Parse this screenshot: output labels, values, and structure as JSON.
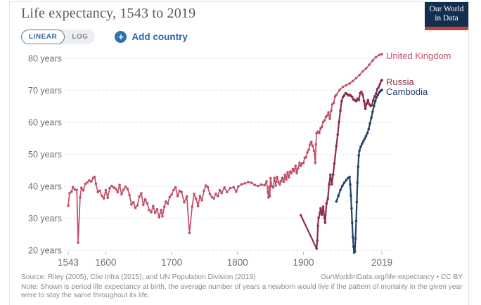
{
  "header": {
    "title": "Life expectancy, 1543 to 2019",
    "logo": {
      "line1": "Our World",
      "line2": "in Data"
    }
  },
  "controls": {
    "linear_label": "LINEAR",
    "log_label": "LOG",
    "add_icon": "+",
    "add_country_label": "Add country"
  },
  "chart_data": {
    "type": "line",
    "title": "Life expectancy, 1543 to 2019",
    "xlabel": "",
    "ylabel": "",
    "x_axis": {
      "range": [
        1543,
        2019
      ],
      "ticks": [
        1543,
        1600,
        1700,
        1800,
        1900,
        2019
      ]
    },
    "y_axis": {
      "range": [
        20,
        80
      ],
      "ticks": [
        20,
        30,
        40,
        50,
        60,
        70,
        80
      ],
      "tick_suffix": " years",
      "grid": true
    },
    "legend_position": "right-end-labels",
    "series": [
      {
        "name": "United Kingdom",
        "color": "#c0506a",
        "points": [
          [
            1543,
            33.9
          ],
          [
            1545,
            37.8
          ],
          [
            1548,
            38.3
          ],
          [
            1550,
            39.7
          ],
          [
            1553,
            39.0
          ],
          [
            1556,
            38.8
          ],
          [
            1558,
            22.4
          ],
          [
            1561,
            36.5
          ],
          [
            1563,
            39.5
          ],
          [
            1566,
            38.7
          ],
          [
            1569,
            40.8
          ],
          [
            1572,
            41.2
          ],
          [
            1575,
            41.8
          ],
          [
            1578,
            41.5
          ],
          [
            1581,
            42.6
          ],
          [
            1583,
            42.9
          ],
          [
            1585,
            40.8
          ],
          [
            1588,
            38.2
          ],
          [
            1591,
            38.6
          ],
          [
            1594,
            37.0
          ],
          [
            1597,
            36.2
          ],
          [
            1600,
            38.8
          ],
          [
            1603,
            36.4
          ],
          [
            1606,
            39.4
          ],
          [
            1609,
            40.1
          ],
          [
            1612,
            39.6
          ],
          [
            1615,
            39.2
          ],
          [
            1618,
            38.1
          ],
          [
            1621,
            40.4
          ],
          [
            1624,
            37.5
          ],
          [
            1627,
            38.9
          ],
          [
            1630,
            39.8
          ],
          [
            1633,
            39.2
          ],
          [
            1636,
            37.3
          ],
          [
            1639,
            34.3
          ],
          [
            1642,
            35.0
          ],
          [
            1645,
            33.2
          ],
          [
            1648,
            34.0
          ],
          [
            1651,
            36.8
          ],
          [
            1654,
            37.8
          ],
          [
            1657,
            34.2
          ],
          [
            1660,
            35.9
          ],
          [
            1663,
            34.6
          ],
          [
            1666,
            32.5
          ],
          [
            1669,
            31.9
          ],
          [
            1672,
            33.8
          ],
          [
            1675,
            31.7
          ],
          [
            1678,
            32.8
          ],
          [
            1681,
            30.3
          ],
          [
            1684,
            32.6
          ],
          [
            1686,
            30.6
          ],
          [
            1689,
            33.6
          ],
          [
            1691,
            35.2
          ],
          [
            1694,
            34.5
          ],
          [
            1697,
            36.6
          ],
          [
            1700,
            37.4
          ],
          [
            1703,
            38.8
          ],
          [
            1706,
            39.7
          ],
          [
            1709,
            36.9
          ],
          [
            1712,
            38.5
          ],
          [
            1715,
            38.2
          ],
          [
            1719,
            35.0
          ],
          [
            1723,
            36.8
          ],
          [
            1727,
            25.4
          ],
          [
            1731,
            33.6
          ],
          [
            1734,
            37.6
          ],
          [
            1737,
            36.1
          ],
          [
            1740,
            33.8
          ],
          [
            1743,
            36.9
          ],
          [
            1746,
            35.6
          ],
          [
            1749,
            38.6
          ],
          [
            1752,
            40.2
          ],
          [
            1755,
            39.7
          ],
          [
            1758,
            37.6
          ],
          [
            1761,
            36.6
          ],
          [
            1764,
            36.2
          ],
          [
            1767,
            37.6
          ],
          [
            1770,
            36.9
          ],
          [
            1773,
            38.8
          ],
          [
            1776,
            37.9
          ],
          [
            1780,
            39.6
          ],
          [
            1784,
            38.2
          ],
          [
            1789,
            39.4
          ],
          [
            1794,
            39.7
          ],
          [
            1798,
            38.3
          ],
          [
            1801,
            39.9
          ],
          [
            1806,
            40.6
          ],
          [
            1811,
            40.9
          ],
          [
            1816,
            41.3
          ],
          [
            1821,
            41.1
          ],
          [
            1826,
            40.4
          ],
          [
            1831,
            40.1
          ],
          [
            1836,
            40.5
          ],
          [
            1841,
            40.3
          ],
          [
            1844,
            41.5
          ],
          [
            1846,
            38.2
          ],
          [
            1847,
            36.5
          ],
          [
            1848,
            39.8
          ],
          [
            1849,
            36.9
          ],
          [
            1850,
            42.5
          ],
          [
            1852,
            40.1
          ],
          [
            1854,
            39.6
          ],
          [
            1856,
            42.6
          ],
          [
            1858,
            40.2
          ],
          [
            1860,
            42.9
          ],
          [
            1862,
            41.3
          ],
          [
            1864,
            40.6
          ],
          [
            1866,
            41.6
          ],
          [
            1868,
            42.6
          ],
          [
            1870,
            41.4
          ],
          [
            1872,
            43.6
          ],
          [
            1874,
            42.1
          ],
          [
            1876,
            44.4
          ],
          [
            1878,
            42.8
          ],
          [
            1880,
            44.6
          ],
          [
            1882,
            44.1
          ],
          [
            1884,
            45.4
          ],
          [
            1886,
            44.7
          ],
          [
            1888,
            46.4
          ],
          [
            1890,
            44.1
          ],
          [
            1892,
            45.6
          ],
          [
            1894,
            47.3
          ],
          [
            1896,
            46.4
          ],
          [
            1898,
            47.1
          ],
          [
            1900,
            47.3
          ],
          [
            1902,
            48.9
          ],
          [
            1904,
            49.1
          ],
          [
            1906,
            50.6
          ],
          [
            1908,
            51.4
          ],
          [
            1910,
            53.1
          ],
          [
            1912,
            53.9
          ],
          [
            1914,
            52.6
          ],
          [
            1916,
            51.1
          ],
          [
            1918,
            47.3
          ],
          [
            1919,
            53.1
          ],
          [
            1920,
            56.6
          ],
          [
            1922,
            57.1
          ],
          [
            1924,
            56.6
          ],
          [
            1926,
            58.1
          ],
          [
            1928,
            58.6
          ],
          [
            1930,
            60.1
          ],
          [
            1932,
            60.6
          ],
          [
            1934,
            61.6
          ],
          [
            1936,
            62.1
          ],
          [
            1938,
            63.1
          ],
          [
            1940,
            61.1
          ],
          [
            1942,
            63.6
          ],
          [
            1944,
            65.6
          ],
          [
            1946,
            66.1
          ],
          [
            1948,
            68.1
          ],
          [
            1950,
            68.6
          ],
          [
            1955,
            70.1
          ],
          [
            1960,
            71.1
          ],
          [
            1965,
            71.6
          ],
          [
            1970,
            72.1
          ],
          [
            1975,
            72.9
          ],
          [
            1980,
            73.8
          ],
          [
            1985,
            74.8
          ],
          [
            1990,
            75.9
          ],
          [
            1995,
            76.8
          ],
          [
            2000,
            78.0
          ],
          [
            2005,
            79.3
          ],
          [
            2010,
            80.4
          ],
          [
            2015,
            81.0
          ],
          [
            2019,
            81.3
          ]
        ]
      },
      {
        "name": "Russia",
        "color": "#8e2f49",
        "points": [
          [
            1896,
            30.9
          ],
          [
            1920,
            20.5
          ],
          [
            1921,
            23.0
          ],
          [
            1922,
            27.6
          ],
          [
            1923,
            30.1
          ],
          [
            1925,
            31.6
          ],
          [
            1926,
            33.1
          ],
          [
            1928,
            31.1
          ],
          [
            1930,
            33.6
          ],
          [
            1932,
            30.1
          ],
          [
            1933,
            28.6
          ],
          [
            1935,
            34.6
          ],
          [
            1937,
            36.1
          ],
          [
            1939,
            40.6
          ],
          [
            1941,
            43.6
          ],
          [
            1943,
            40.6
          ],
          [
            1945,
            43.6
          ],
          [
            1947,
            47.1
          ],
          [
            1950,
            52.6
          ],
          [
            1952,
            56.1
          ],
          [
            1954,
            60.1
          ],
          [
            1956,
            63.6
          ],
          [
            1958,
            66.6
          ],
          [
            1960,
            67.9
          ],
          [
            1962,
            68.4
          ],
          [
            1964,
            69.1
          ],
          [
            1966,
            68.9
          ],
          [
            1968,
            68.4
          ],
          [
            1970,
            68.6
          ],
          [
            1972,
            68.3
          ],
          [
            1974,
            67.9
          ],
          [
            1976,
            67.1
          ],
          [
            1978,
            66.9
          ],
          [
            1980,
            66.6
          ],
          [
            1982,
            67.4
          ],
          [
            1984,
            66.9
          ],
          [
            1986,
            69.1
          ],
          [
            1988,
            69.5
          ],
          [
            1990,
            68.6
          ],
          [
            1992,
            66.6
          ],
          [
            1994,
            64.2
          ],
          [
            1996,
            65.9
          ],
          [
            1998,
            66.9
          ],
          [
            2000,
            65.6
          ],
          [
            2002,
            65.1
          ],
          [
            2004,
            65.4
          ],
          [
            2006,
            66.9
          ],
          [
            2008,
            68.1
          ],
          [
            2010,
            68.9
          ],
          [
            2012,
            70.3
          ],
          [
            2014,
            70.9
          ],
          [
            2016,
            71.9
          ],
          [
            2018,
            72.9
          ],
          [
            2019,
            73.2
          ]
        ]
      },
      {
        "name": "Cambodia",
        "color": "#21426b",
        "points": [
          [
            1950,
            35.2
          ],
          [
            1953,
            37.0
          ],
          [
            1956,
            38.8
          ],
          [
            1959,
            40.1
          ],
          [
            1962,
            41.1
          ],
          [
            1965,
            41.9
          ],
          [
            1968,
            42.6
          ],
          [
            1970,
            42.9
          ],
          [
            1971,
            40.6
          ],
          [
            1972,
            37.1
          ],
          [
            1973,
            33.1
          ],
          [
            1974,
            28.6
          ],
          [
            1975,
            24.1
          ],
          [
            1976,
            21.1
          ],
          [
            1977,
            19.3
          ],
          [
            1978,
            19.6
          ],
          [
            1979,
            23.6
          ],
          [
            1980,
            29.1
          ],
          [
            1981,
            35.1
          ],
          [
            1982,
            41.1
          ],
          [
            1983,
            46.1
          ],
          [
            1984,
            49.6
          ],
          [
            1985,
            51.1
          ],
          [
            1987,
            52.4
          ],
          [
            1989,
            53.3
          ],
          [
            1991,
            54.1
          ],
          [
            1993,
            54.9
          ],
          [
            1995,
            55.7
          ],
          [
            1997,
            56.6
          ],
          [
            1999,
            57.9
          ],
          [
            2001,
            59.6
          ],
          [
            2003,
            61.4
          ],
          [
            2005,
            63.3
          ],
          [
            2007,
            65.1
          ],
          [
            2009,
            66.6
          ],
          [
            2011,
            67.8
          ],
          [
            2013,
            68.6
          ],
          [
            2015,
            69.3
          ],
          [
            2017,
            69.8
          ],
          [
            2019,
            70.1
          ]
        ]
      }
    ]
  },
  "footer": {
    "source": "Source: Riley (2005), Clio Infra (2015), and UN Population Division (2019)",
    "attribution": "OurWorldInData.org/life-expectancy • CC BY",
    "note": "Note: Shown is period life expectancy at birth, the average number of years a newborn would live if the pattern of mortality in the given year were to stay the same throughout its life."
  },
  "colors": {
    "accent_blue": "#2c67ad",
    "logo_navy": "#132f4f",
    "logo_red": "#cd3d33",
    "grid": "#e0e0e0",
    "axis_text": "#6e6e6e"
  }
}
